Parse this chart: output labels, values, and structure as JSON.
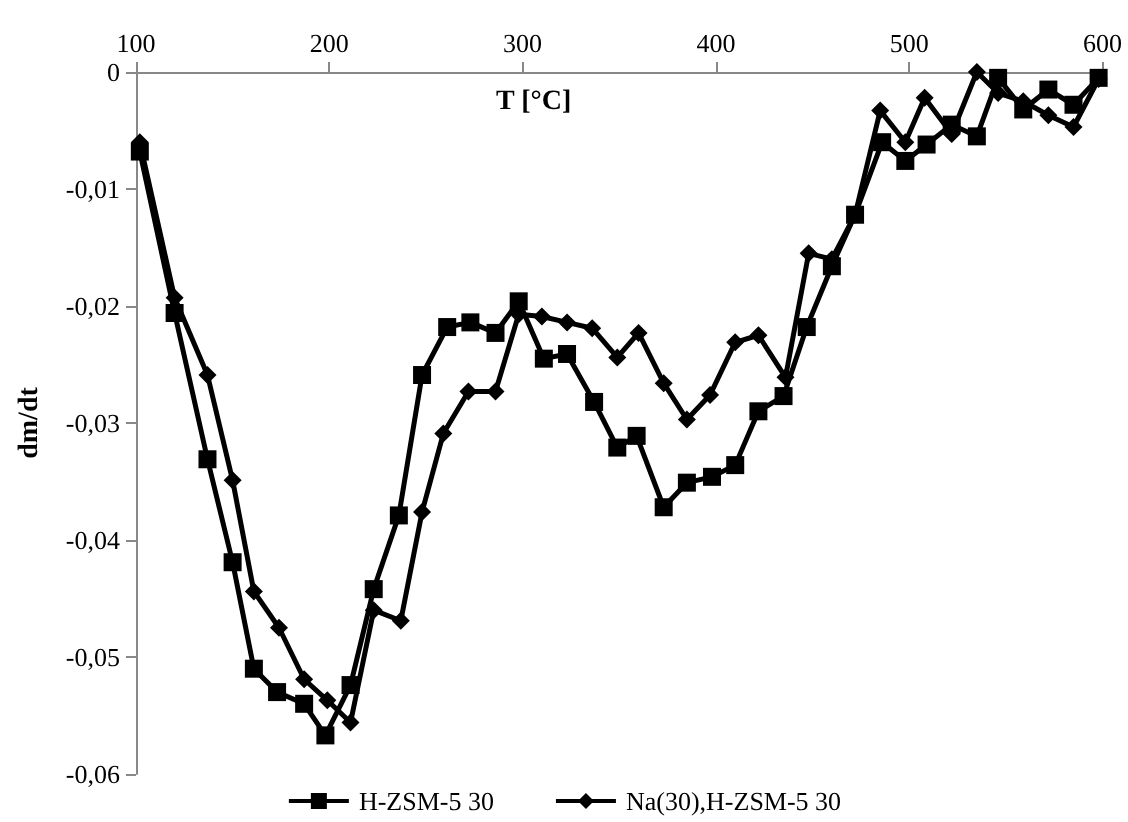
{
  "chart_data": {
    "type": "line",
    "xlabel": "T [°C]",
    "ylabel": "dm/dt",
    "xlim": [
      100,
      600
    ],
    "xticks": [
      100,
      200,
      300,
      400,
      500,
      600
    ],
    "ylim": [
      -0.06,
      0
    ],
    "yticks": [
      {
        "value": -0.06,
        "label": "-0,06"
      },
      {
        "value": -0.05,
        "label": "-0,05"
      },
      {
        "value": -0.04,
        "label": "-0,04"
      },
      {
        "value": -0.03,
        "label": "-0,03"
      },
      {
        "value": -0.02,
        "label": "-0,02"
      },
      {
        "value": -0.01,
        "label": "-0,01"
      },
      {
        "value": 0,
        "label": "0"
      }
    ],
    "grid": false,
    "legend": "bottom",
    "line_style": "solid",
    "series": [
      {
        "name": "H-ZSM-5 30",
        "color": "#000000",
        "marker": "square",
        "x": [
          102,
          120,
          137,
          150,
          161,
          173,
          187,
          198,
          211,
          223,
          236,
          248,
          261,
          273,
          286,
          298,
          311,
          323,
          337,
          349,
          359,
          373,
          385,
          398,
          410,
          422,
          435,
          447,
          460,
          472,
          486,
          498,
          509,
          522,
          535,
          546,
          559,
          572,
          585,
          598
        ],
        "values": [
          -0.0068,
          -0.0206,
          -0.0331,
          -0.0419,
          -0.051,
          -0.053,
          -0.054,
          -0.0567,
          -0.0524,
          -0.0442,
          -0.0379,
          -0.0259,
          -0.0218,
          -0.0214,
          -0.0223,
          -0.0196,
          -0.0245,
          -0.0241,
          -0.0282,
          -0.0321,
          -0.0311,
          -0.0372,
          -0.0351,
          -0.0346,
          -0.0336,
          -0.029,
          -0.0277,
          -0.0218,
          -0.0166,
          -0.0122,
          -0.006,
          -0.0076,
          -0.0062,
          -0.0045,
          -0.0055,
          -0.0005,
          -0.0032,
          -0.0015,
          -0.0028,
          -0.0005
        ]
      },
      {
        "name": "Na(30),H-ZSM-5 30",
        "color": "#000000",
        "marker": "diamond",
        "x": [
          102,
          120,
          137,
          150,
          161,
          174,
          187,
          199,
          211,
          223,
          237,
          248,
          259,
          272,
          286,
          298,
          310,
          323,
          336,
          349,
          360,
          373,
          385,
          397,
          410,
          422,
          436,
          448,
          460,
          472,
          485,
          498,
          508,
          522,
          535,
          546,
          559,
          572,
          585,
          598
        ],
        "values": [
          -0.006,
          -0.0193,
          -0.0259,
          -0.0349,
          -0.0444,
          -0.0475,
          -0.0519,
          -0.0537,
          -0.0556,
          -0.046,
          -0.0469,
          -0.0376,
          -0.0309,
          -0.0273,
          -0.0273,
          -0.0207,
          -0.0209,
          -0.0214,
          -0.0219,
          -0.0244,
          -0.0223,
          -0.0266,
          -0.0297,
          -0.0276,
          -0.0231,
          -0.0225,
          -0.0261,
          -0.0155,
          -0.016,
          -0.0122,
          -0.0033,
          -0.006,
          -0.0022,
          -0.0053,
          0,
          -0.0018,
          -0.0025,
          -0.0037,
          -0.0047,
          -0.0006
        ]
      }
    ]
  }
}
